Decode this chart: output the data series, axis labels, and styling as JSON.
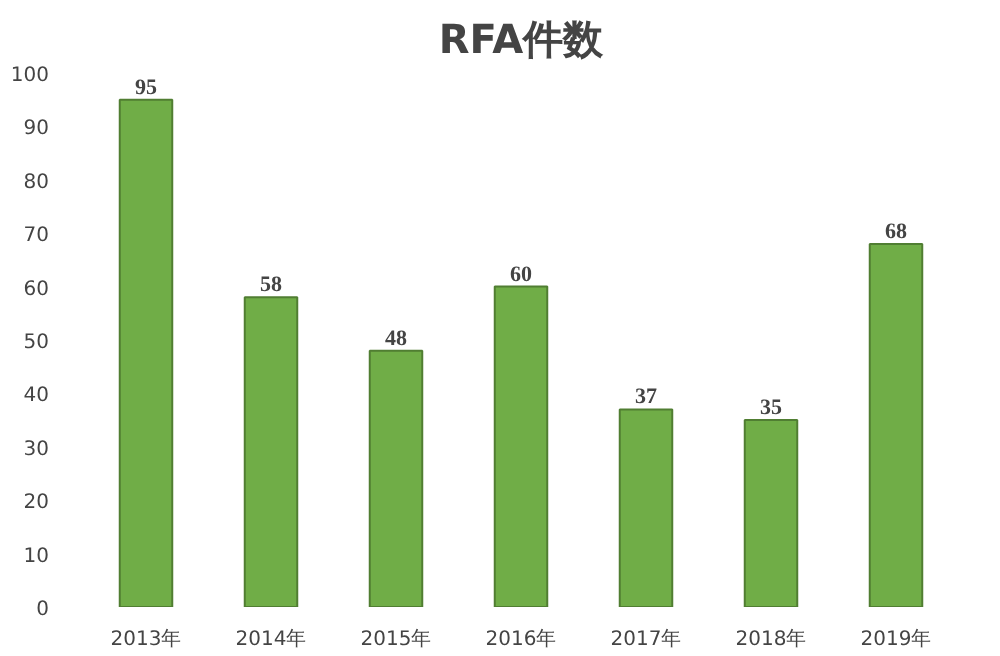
{
  "chart_data": {
    "type": "bar",
    "title": "RFA件数",
    "categories": [
      "2013年",
      "2014年",
      "2015年",
      "2016年",
      "2017年",
      "2018年",
      "2019年"
    ],
    "values": [
      95,
      58,
      48,
      60,
      37,
      35,
      68
    ],
    "color": "#70ad47",
    "ylim": [
      0,
      100
    ],
    "yticks": [
      0,
      10,
      20,
      30,
      40,
      50,
      60,
      70,
      80,
      90,
      100
    ],
    "data_labels": true
  }
}
